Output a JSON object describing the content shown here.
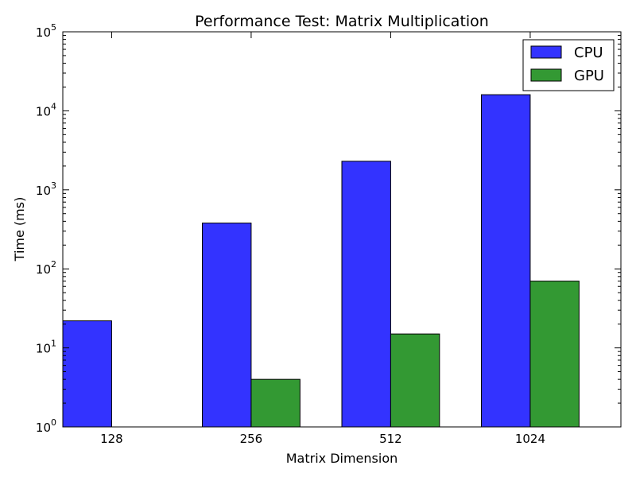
{
  "chart_data": {
    "type": "bar",
    "title": "Performance Test: Matrix Multiplication",
    "xlabel": "Matrix Dimension",
    "ylabel": "Time (ms)",
    "categories": [
      "128",
      "256",
      "512",
      "1024"
    ],
    "series": [
      {
        "name": "CPU",
        "color": "#3333ff",
        "values": [
          22,
          380,
          2300,
          16000
        ]
      },
      {
        "name": "GPU",
        "color": "#339933",
        "values": [
          1,
          4,
          15,
          70
        ]
      }
    ],
    "y_scale": "log",
    "ylim": [
      1,
      100000
    ],
    "y_ticks": [
      {
        "base": "10",
        "exp": "0"
      },
      {
        "base": "10",
        "exp": "1"
      },
      {
        "base": "10",
        "exp": "2"
      },
      {
        "base": "10",
        "exp": "3"
      },
      {
        "base": "10",
        "exp": "4"
      },
      {
        "base": "10",
        "exp": "5"
      }
    ],
    "grid": false,
    "legend_position": "top-right"
  }
}
